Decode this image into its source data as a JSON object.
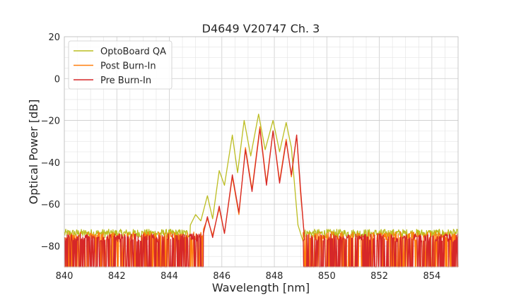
{
  "chart_data": {
    "type": "line",
    "title": "D4649 V20747 Ch. 3",
    "xlabel": "Wavelength [nm]",
    "ylabel": "Optical Power [dB]",
    "xlim": [
      840,
      855
    ],
    "ylim": [
      -90,
      20
    ],
    "x_ticks": [
      840,
      842,
      844,
      846,
      848,
      850,
      852,
      854
    ],
    "y_ticks": [
      20,
      0,
      -20,
      -40,
      -60,
      -80
    ],
    "x_tick_labels": [
      "840",
      "842",
      "844",
      "846",
      "848",
      "850",
      "852",
      "854"
    ],
    "y_tick_labels": [
      "20",
      "0",
      "−20",
      "−40",
      "−60",
      "−80"
    ],
    "grid": true,
    "legend": {
      "placement": "top-left"
    },
    "noise_floor": {
      "left_end": 845.3,
      "right_start": 849.1,
      "level": -76
    },
    "series": [
      {
        "name": "OptoBoard QA",
        "color": "#bcbd22",
        "noise_floor_db": -74,
        "points": [
          [
            844.8,
            -70
          ],
          [
            845.0,
            -65
          ],
          [
            845.2,
            -68
          ],
          [
            845.45,
            -56
          ],
          [
            845.65,
            -67
          ],
          [
            845.9,
            -44
          ],
          [
            846.1,
            -51
          ],
          [
            846.4,
            -27
          ],
          [
            846.6,
            -45
          ],
          [
            846.85,
            -20
          ],
          [
            847.1,
            -37
          ],
          [
            847.4,
            -17
          ],
          [
            847.65,
            -34
          ],
          [
            847.95,
            -20
          ],
          [
            848.2,
            -35
          ],
          [
            848.45,
            -21
          ],
          [
            848.65,
            -33
          ],
          [
            848.9,
            -70
          ],
          [
            849.1,
            -78
          ]
        ]
      },
      {
        "name": "Post Burn-In",
        "color": "#ff7f0e",
        "noise_floor_db": -76,
        "points": [
          [
            845.3,
            -72
          ],
          [
            845.45,
            -67
          ],
          [
            845.65,
            -75
          ],
          [
            845.9,
            -62
          ],
          [
            846.1,
            -74
          ],
          [
            846.4,
            -47
          ],
          [
            846.65,
            -65
          ],
          [
            846.9,
            -33
          ],
          [
            847.15,
            -53
          ],
          [
            847.45,
            -23
          ],
          [
            847.7,
            -50
          ],
          [
            847.95,
            -25
          ],
          [
            848.2,
            -49
          ],
          [
            848.45,
            -29
          ],
          [
            848.65,
            -47
          ],
          [
            848.85,
            -27
          ],
          [
            849.0,
            -55
          ],
          [
            849.15,
            -76
          ]
        ]
      },
      {
        "name": "Pre Burn-In",
        "color": "#d62728",
        "noise_floor_db": -77,
        "points": [
          [
            845.3,
            -74
          ],
          [
            845.45,
            -66
          ],
          [
            845.65,
            -76
          ],
          [
            845.9,
            -61
          ],
          [
            846.1,
            -74
          ],
          [
            846.4,
            -46
          ],
          [
            846.65,
            -64
          ],
          [
            846.9,
            -34
          ],
          [
            847.15,
            -54
          ],
          [
            847.45,
            -24
          ],
          [
            847.7,
            -51
          ],
          [
            847.95,
            -25
          ],
          [
            848.2,
            -50
          ],
          [
            848.45,
            -30
          ],
          [
            848.65,
            -46
          ],
          [
            848.85,
            -27
          ],
          [
            849.0,
            -53
          ],
          [
            849.15,
            -77
          ]
        ]
      }
    ]
  }
}
